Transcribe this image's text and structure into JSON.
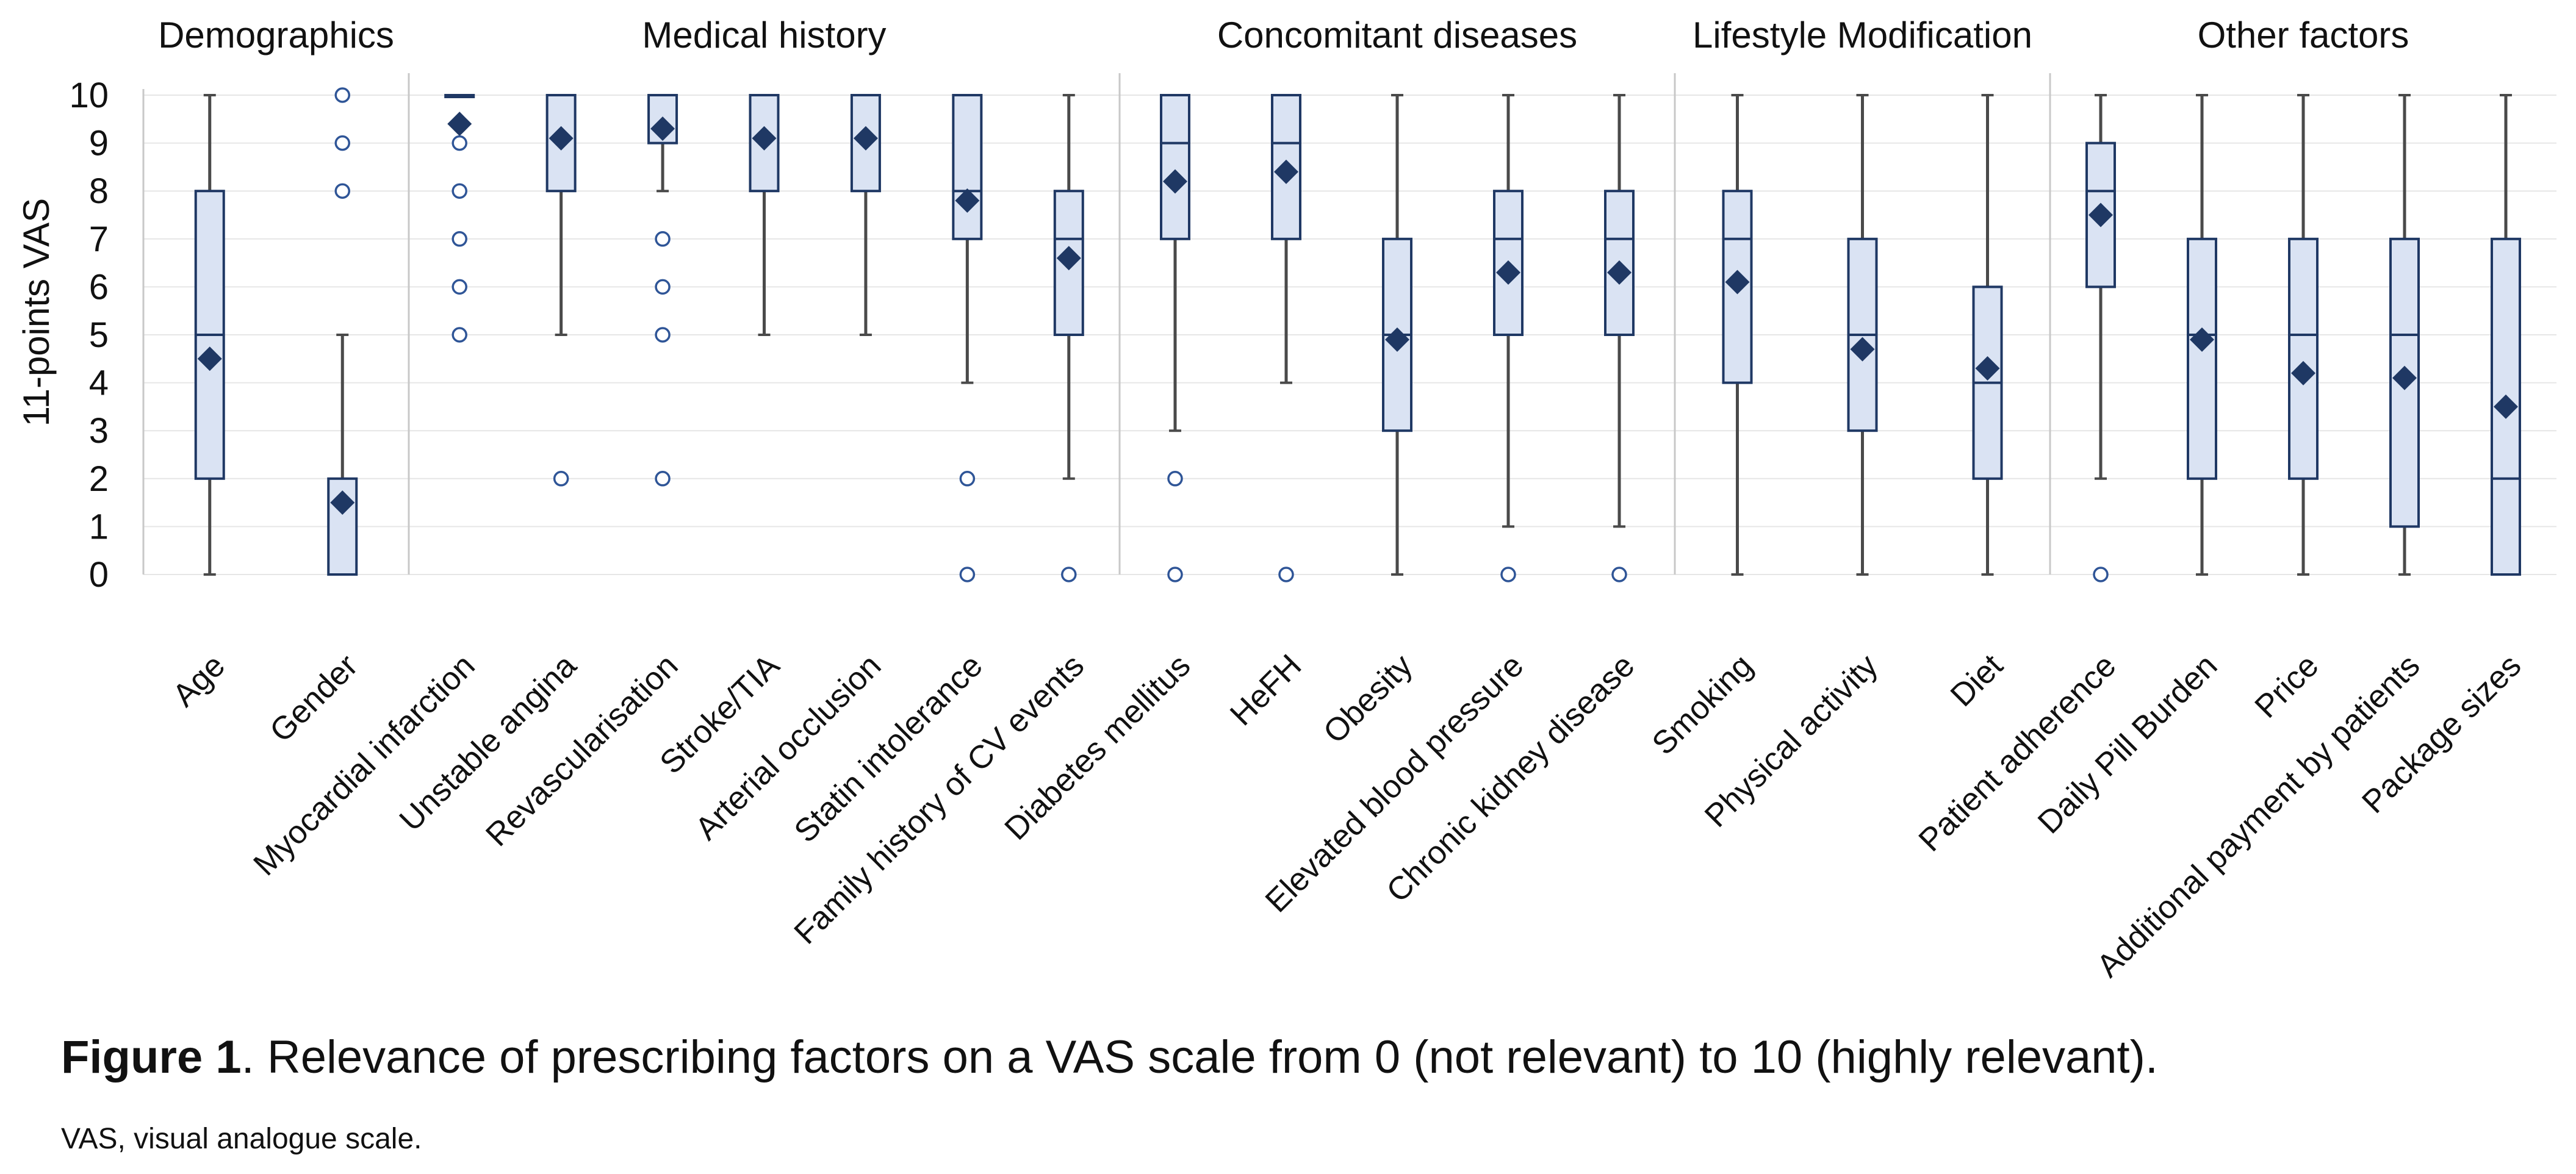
{
  "chart_data": {
    "type": "box",
    "ylabel": "11-points VAS",
    "ylim": [
      0,
      10
    ],
    "yticks": [
      0,
      1,
      2,
      3,
      4,
      5,
      6,
      7,
      8,
      9,
      10
    ],
    "grid": true,
    "colors": {
      "box_fill": "#dae3f3",
      "box_stroke": "#1f3864",
      "whisker": "#4a4a4a",
      "mean_marker": "#1f3864",
      "outlier": "#2f5597",
      "grid": "#e6e6e6",
      "separator": "#c8c8c8"
    },
    "groups": [
      {
        "name": "Demographics",
        "items": [
          {
            "label": "Age",
            "min": 0,
            "q1": 2,
            "median": 5,
            "q3": 8,
            "max": 10,
            "mean": 4.5,
            "outliers": []
          },
          {
            "label": "Gender",
            "min": 0,
            "q1": 0,
            "median": 0,
            "q3": 2,
            "max": 5,
            "mean": 1.5,
            "outliers": [
              8,
              9,
              10
            ]
          }
        ]
      },
      {
        "name": "Medical history",
        "items": [
          {
            "label": "Myocardial infarction",
            "min": 10,
            "q1": 10,
            "median": 10,
            "q3": 10,
            "max": 10,
            "mean": 9.4,
            "outliers": [
              5,
              6,
              7,
              8,
              9
            ]
          },
          {
            "label": "Unstable angina",
            "min": 5,
            "q1": 8,
            "median": 10,
            "q3": 10,
            "max": 10,
            "mean": 9.1,
            "outliers": [
              2
            ]
          },
          {
            "label": "Revascularisation",
            "min": 8,
            "q1": 9,
            "median": 10,
            "q3": 10,
            "max": 10,
            "mean": 9.3,
            "outliers": [
              2,
              5,
              6,
              7
            ]
          },
          {
            "label": "Stroke/TIA",
            "min": 5,
            "q1": 8,
            "median": 10,
            "q3": 10,
            "max": 10,
            "mean": 9.1,
            "outliers": []
          },
          {
            "label": "Arterial occlusion",
            "min": 5,
            "q1": 8,
            "median": 10,
            "q3": 10,
            "max": 10,
            "mean": 9.1,
            "outliers": []
          },
          {
            "label": "Statin intolerance",
            "min": 4,
            "q1": 7,
            "median": 8,
            "q3": 10,
            "max": 10,
            "mean": 7.8,
            "outliers": [
              0,
              2
            ]
          },
          {
            "label": "Family history of CV events",
            "min": 2,
            "q1": 5,
            "median": 7,
            "q3": 8,
            "max": 10,
            "mean": 6.6,
            "outliers": [
              0
            ]
          }
        ]
      },
      {
        "name": "Concomitant diseases",
        "items": [
          {
            "label": "Diabetes mellitus",
            "min": 3,
            "q1": 7,
            "median": 9,
            "q3": 10,
            "max": 10,
            "mean": 8.2,
            "outliers": [
              0,
              2
            ]
          },
          {
            "label": "HeFH",
            "min": 4,
            "q1": 7,
            "median": 9,
            "q3": 10,
            "max": 10,
            "mean": 8.4,
            "outliers": [
              0
            ]
          },
          {
            "label": "Obesity",
            "min": 0,
            "q1": 3,
            "median": 5,
            "q3": 7,
            "max": 10,
            "mean": 4.9,
            "outliers": []
          },
          {
            "label": "Elevated blood pressure",
            "min": 1,
            "q1": 5,
            "median": 7,
            "q3": 8,
            "max": 10,
            "mean": 6.3,
            "outliers": [
              0
            ]
          },
          {
            "label": "Chronic kidney disease",
            "min": 1,
            "q1": 5,
            "median": 7,
            "q3": 8,
            "max": 10,
            "mean": 6.3,
            "outliers": [
              0
            ]
          }
        ]
      },
      {
        "name": "Lifestyle Modification",
        "items": [
          {
            "label": "Smoking",
            "min": 0,
            "q1": 4,
            "median": 7,
            "q3": 8,
            "max": 10,
            "mean": 6.1,
            "outliers": []
          },
          {
            "label": "Physical activity",
            "min": 0,
            "q1": 3,
            "median": 5,
            "q3": 7,
            "max": 10,
            "mean": 4.7,
            "outliers": []
          },
          {
            "label": "Diet",
            "min": 0,
            "q1": 2,
            "median": 4,
            "q3": 6,
            "max": 10,
            "mean": 4.3,
            "outliers": []
          }
        ]
      },
      {
        "name": "Other factors",
        "items": [
          {
            "label": "Patient adherence",
            "min": 2,
            "q1": 6,
            "median": 8,
            "q3": 9,
            "max": 10,
            "mean": 7.5,
            "outliers": [
              0
            ]
          },
          {
            "label": "Daily Pill Burden",
            "min": 0,
            "q1": 2,
            "median": 5,
            "q3": 7,
            "max": 10,
            "mean": 4.9,
            "outliers": []
          },
          {
            "label": "Price",
            "min": 0,
            "q1": 2,
            "median": 5,
            "q3": 7,
            "max": 10,
            "mean": 4.2,
            "outliers": []
          },
          {
            "label": "Additional payment by patients",
            "min": 0,
            "q1": 1,
            "median": 5,
            "q3": 7,
            "max": 10,
            "mean": 4.1,
            "outliers": []
          },
          {
            "label": "Package sizes",
            "min": 0,
            "q1": 0,
            "median": 2,
            "q3": 7,
            "max": 10,
            "mean": 3.5,
            "outliers": []
          }
        ]
      }
    ]
  },
  "caption": {
    "figure_label": "Figure 1",
    "text": ". Relevance of prescribing factors on a VAS scale from 0 (not relevant) to 10 (highly relevant).",
    "footnote": "VAS, visual analogue scale."
  }
}
